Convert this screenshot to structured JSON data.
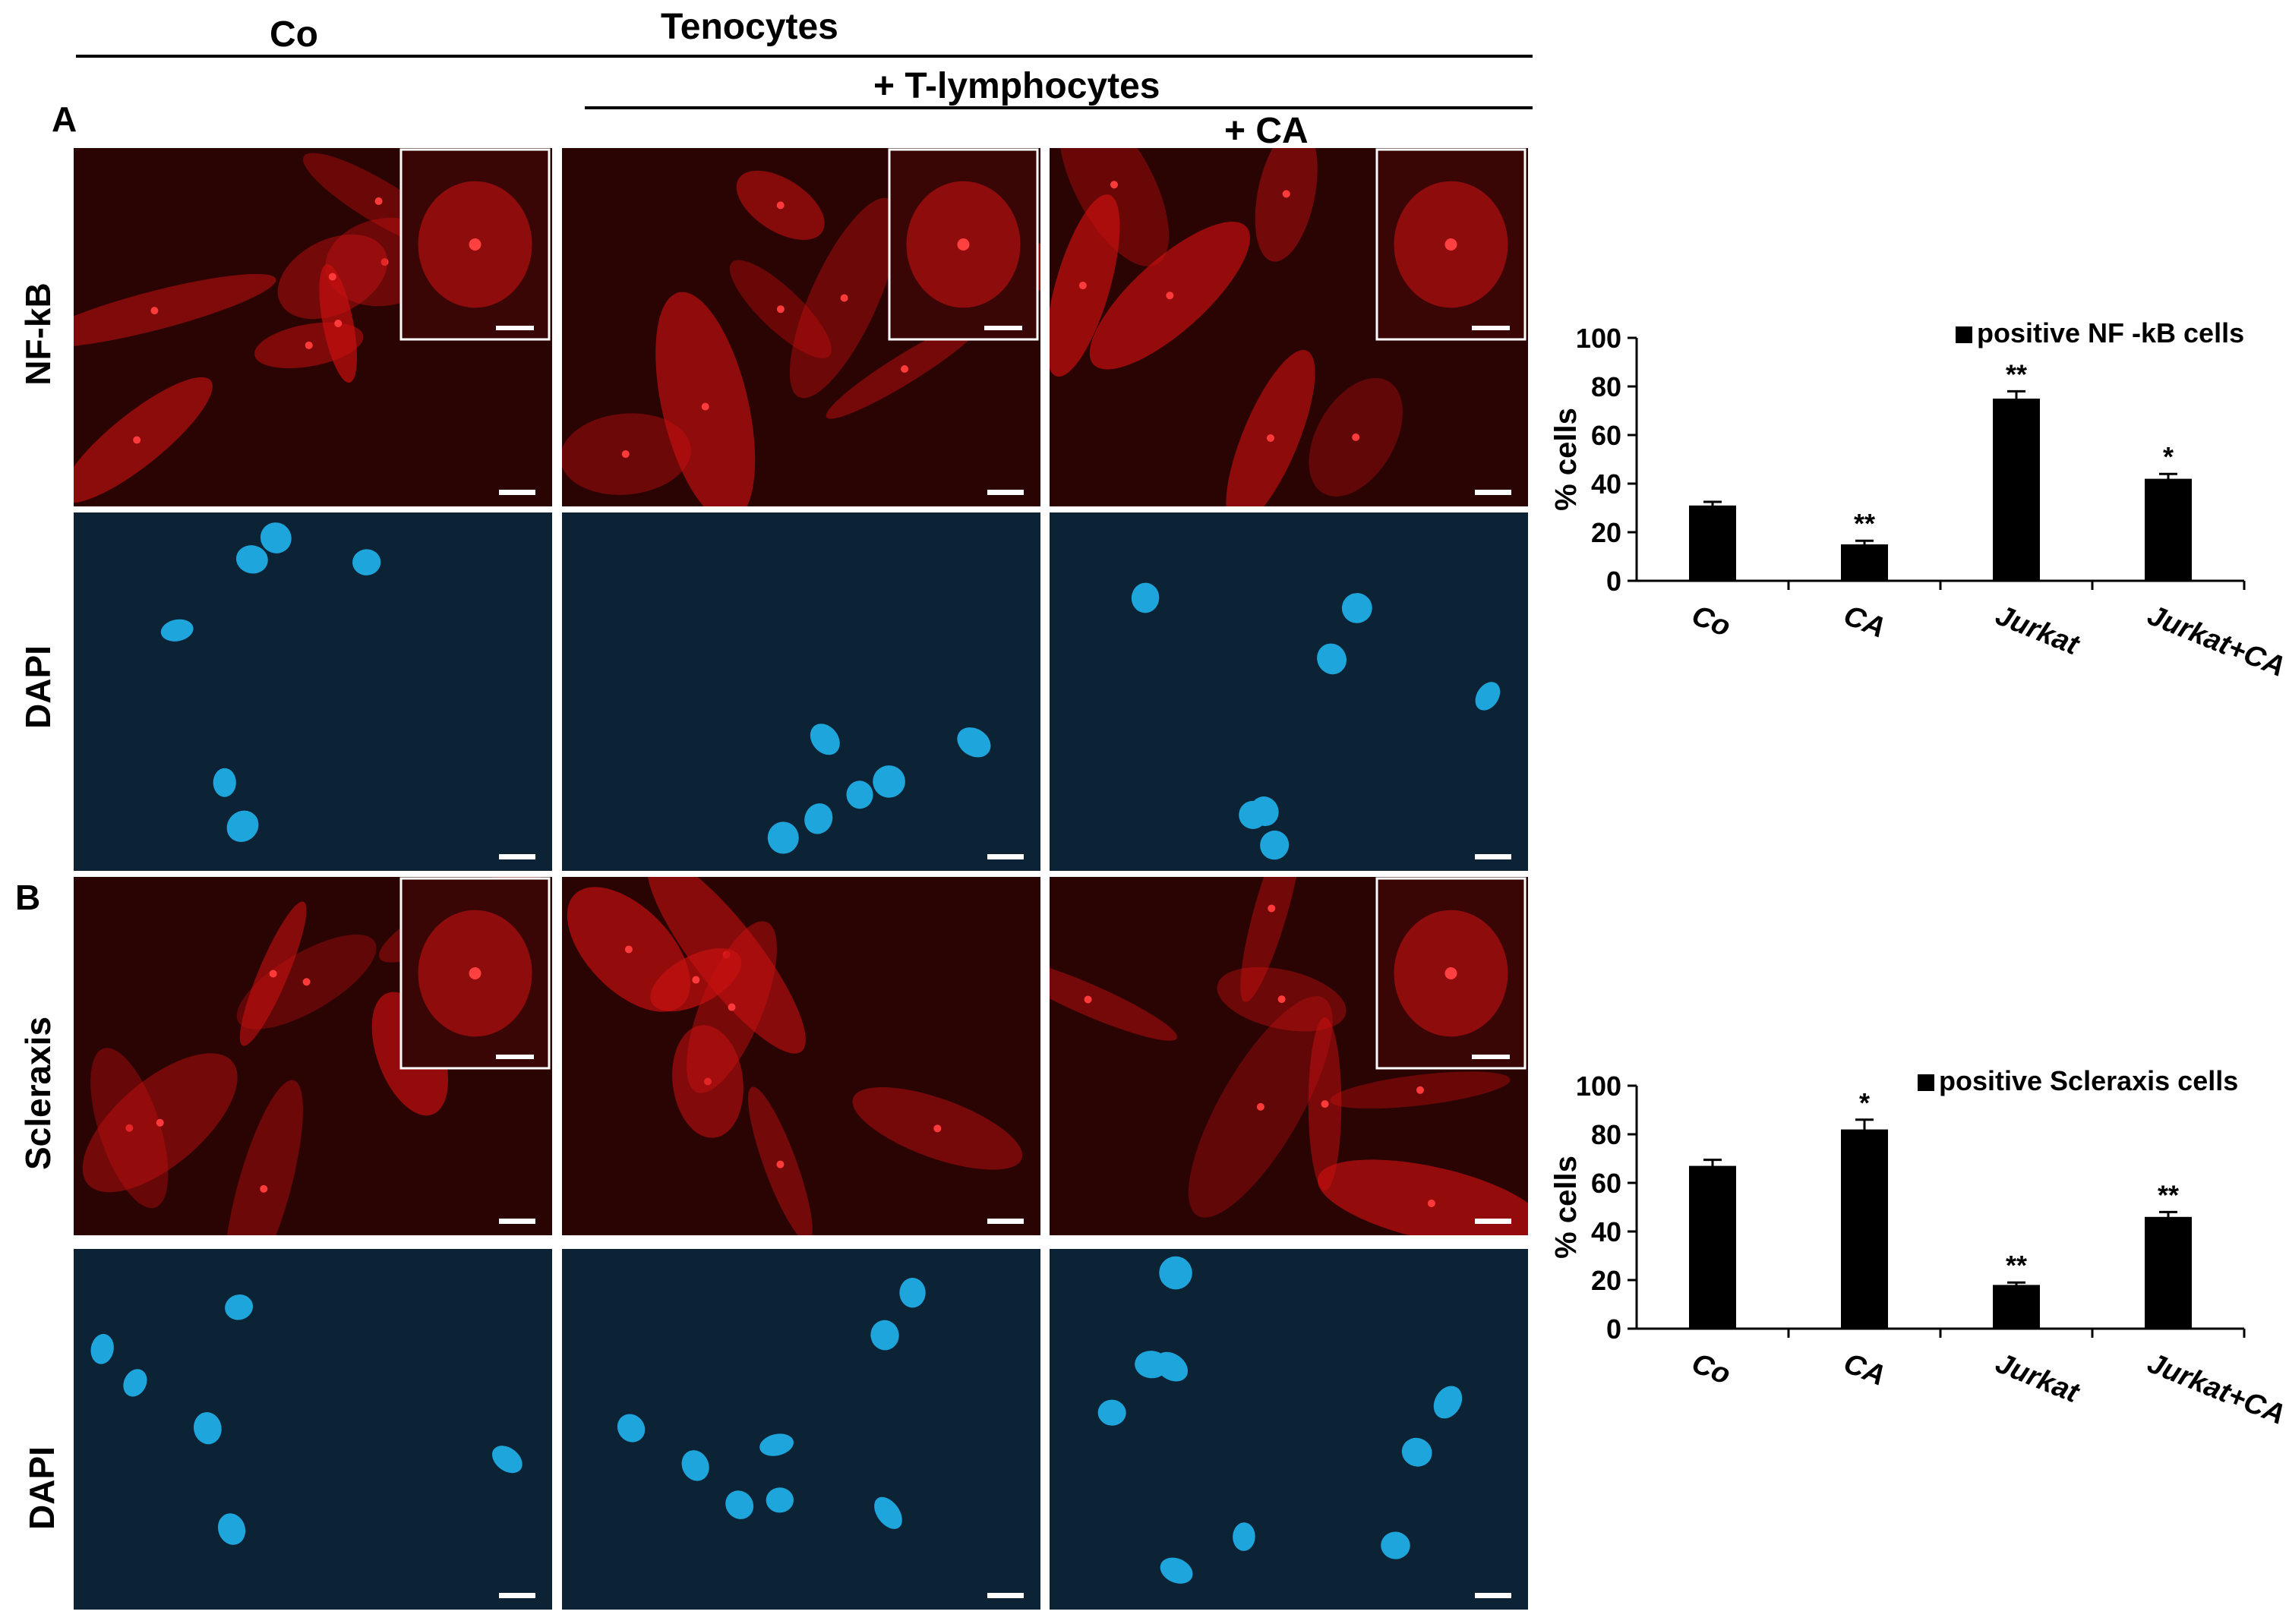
{
  "header": {
    "co": "Co",
    "tenocytes": "Tenocytes",
    "t_lymphocytes": "+ T-lymphocytes",
    "ca": "+ CA"
  },
  "panels": {
    "a": "A",
    "b": "B"
  },
  "row_labels": {
    "nfkb": "NF-kB",
    "dapi1": "DAPI",
    "scleraxis": "Scleraxis",
    "dapi2": "DAPI"
  },
  "colors": {
    "red_stain": "#c81010",
    "red_background": "#2a0303",
    "dapi_stain": "#1ea6dc",
    "dapi_background": "#0c2336",
    "bar": "#000000"
  },
  "chart_data": [
    {
      "type": "bar",
      "categories": [
        "Co",
        "CA",
        "Jurkat",
        "Jurkat+CA"
      ],
      "series": [
        {
          "name": "positive NF -kB cells",
          "values": [
            31,
            15,
            75,
            42
          ],
          "errors": [
            1.5,
            1.5,
            3,
            2
          ]
        }
      ],
      "significance": [
        "",
        "**",
        "**",
        "*"
      ],
      "ylabel": "% cells",
      "ylim": [
        0,
        100
      ],
      "yticks": [
        0,
        20,
        40,
        60,
        80,
        100
      ],
      "legend": "top-right"
    },
    {
      "type": "bar",
      "categories": [
        "Co",
        "CA",
        "Jurkat",
        "Jurkat+CA"
      ],
      "series": [
        {
          "name": "positive Scleraxis cells",
          "values": [
            67,
            82,
            18,
            46
          ],
          "errors": [
            2.5,
            4,
            1,
            2
          ]
        }
      ],
      "significance": [
        "",
        "*",
        "**",
        "**"
      ],
      "ylabel": "% cells",
      "ylim": [
        0,
        100
      ],
      "yticks": [
        0,
        20,
        40,
        60,
        80,
        100
      ],
      "legend": "top-right"
    }
  ]
}
